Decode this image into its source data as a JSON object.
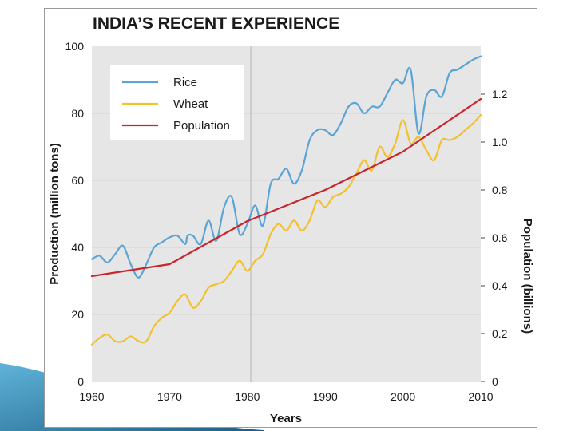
{
  "chart_data": {
    "type": "line",
    "title": "INDIA’S RECENT EXPERIENCE",
    "xlabel": "Years",
    "ylabel": "Production (million tons)",
    "y2label": "Population (billions)",
    "xlim": [
      1960,
      2010
    ],
    "ylim": [
      0,
      100
    ],
    "y2lim": [
      0,
      1.4
    ],
    "xticks": [
      "1960",
      "1970",
      "1980",
      "1990",
      "2000",
      "2010"
    ],
    "yticks": [
      "0",
      "20",
      "40",
      "60",
      "80",
      "100"
    ],
    "y2ticks": [
      "0",
      "0.2",
      "0.4",
      "0.6",
      "0.8",
      "1.0",
      "1.2"
    ],
    "legend_position": "top-left",
    "series": [
      {
        "name": "Rice",
        "axis": "left",
        "color": "#5aa4d6",
        "points": [
          [
            1960,
            36.5
          ],
          [
            1961,
            37.5
          ],
          [
            1962,
            35.5
          ],
          [
            1963,
            38
          ],
          [
            1964,
            40.5
          ],
          [
            1965,
            35
          ],
          [
            1966,
            31
          ],
          [
            1967,
            35
          ],
          [
            1968,
            40
          ],
          [
            1969,
            41.5
          ],
          [
            1970,
            43
          ],
          [
            1971,
            43.5
          ],
          [
            1972,
            41
          ],
          [
            1972.3,
            43.5
          ],
          [
            1973,
            43.5
          ],
          [
            1974,
            41
          ],
          [
            1975,
            48
          ],
          [
            1976,
            42
          ],
          [
            1977,
            52
          ],
          [
            1978,
            55
          ],
          [
            1979,
            44
          ],
          [
            1980,
            47
          ],
          [
            1981,
            52.5
          ],
          [
            1982,
            46.5
          ],
          [
            1983,
            59
          ],
          [
            1984,
            60.5
          ],
          [
            1985,
            63.5
          ],
          [
            1986,
            59
          ],
          [
            1987,
            63
          ],
          [
            1988,
            72
          ],
          [
            1989,
            75
          ],
          [
            1990,
            75
          ],
          [
            1991,
            73.5
          ],
          [
            1992,
            77
          ],
          [
            1993,
            82
          ],
          [
            1994,
            83
          ],
          [
            1995,
            80
          ],
          [
            1996,
            82
          ],
          [
            1997,
            82
          ],
          [
            1998,
            86
          ],
          [
            1999,
            90
          ],
          [
            2000,
            89
          ],
          [
            2001,
            93
          ],
          [
            2002,
            74
          ],
          [
            2003,
            85
          ],
          [
            2004,
            87
          ],
          [
            2005,
            85
          ],
          [
            2006,
            92
          ],
          [
            2007,
            93
          ],
          [
            2008,
            94.5
          ],
          [
            2009,
            96
          ],
          [
            2010,
            97
          ]
        ]
      },
      {
        "name": "Wheat",
        "axis": "left",
        "color": "#f2c12e",
        "points": [
          [
            1960,
            11
          ],
          [
            1961,
            13
          ],
          [
            1962,
            14
          ],
          [
            1963,
            12
          ],
          [
            1964,
            12
          ],
          [
            1965,
            13.5
          ],
          [
            1966,
            12
          ],
          [
            1967,
            12
          ],
          [
            1968,
            16.5
          ],
          [
            1969,
            19
          ],
          [
            1970,
            20.5
          ],
          [
            1971,
            24
          ],
          [
            1972,
            26
          ],
          [
            1973,
            22
          ],
          [
            1974,
            24
          ],
          [
            1975,
            28
          ],
          [
            1976,
            29
          ],
          [
            1977,
            30
          ],
          [
            1978,
            33
          ],
          [
            1979,
            36
          ],
          [
            1980,
            33
          ],
          [
            1981,
            36
          ],
          [
            1982,
            38
          ],
          [
            1983,
            44
          ],
          [
            1984,
            47
          ],
          [
            1985,
            45
          ],
          [
            1986,
            48
          ],
          [
            1987,
            45
          ],
          [
            1988,
            48
          ],
          [
            1989,
            54
          ],
          [
            1990,
            52
          ],
          [
            1991,
            55
          ],
          [
            1992,
            56
          ],
          [
            1993,
            58
          ],
          [
            1994,
            62
          ],
          [
            1995,
            66
          ],
          [
            1996,
            63
          ],
          [
            1997,
            70
          ],
          [
            1998,
            67
          ],
          [
            1999,
            71
          ],
          [
            2000,
            78
          ],
          [
            2001,
            71
          ],
          [
            2002,
            73
          ],
          [
            2003,
            69
          ],
          [
            2004,
            66
          ],
          [
            2005,
            72
          ],
          [
            2006,
            72
          ],
          [
            2007,
            73
          ],
          [
            2008,
            75
          ],
          [
            2009,
            77
          ],
          [
            2010,
            79.5
          ]
        ]
      },
      {
        "name": "Population",
        "axis": "right",
        "color": "#c8262e",
        "points": [
          [
            1960,
            0.44
          ],
          [
            1970,
            0.49
          ],
          [
            1980,
            0.67
          ],
          [
            1990,
            0.8
          ],
          [
            2000,
            0.96
          ],
          [
            2010,
            1.18
          ]
        ]
      }
    ]
  }
}
